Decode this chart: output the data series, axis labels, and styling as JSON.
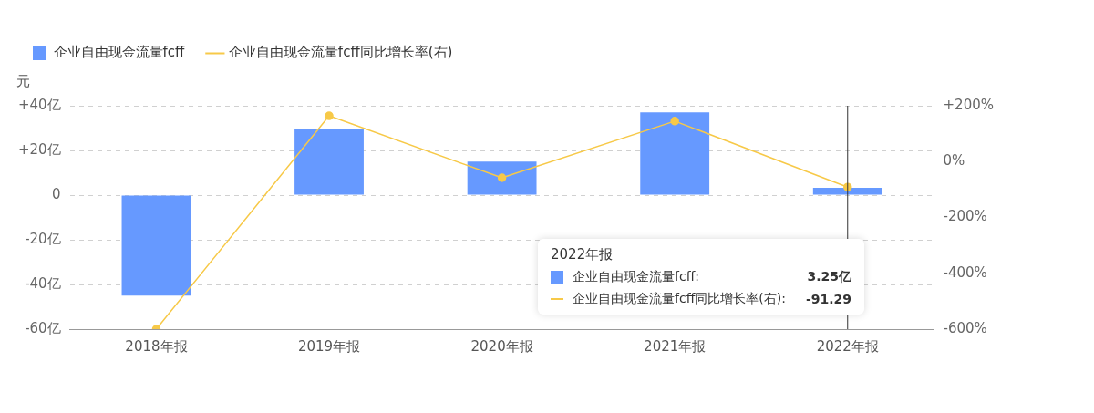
{
  "chart_data": {
    "type": "bar",
    "ylabel": "元",
    "categories": [
      "2018年报",
      "2019年报",
      "2020年报",
      "2021年报",
      "2022年报"
    ],
    "series": [
      {
        "name": "企业自由现金流量fcff",
        "color": "#6699ff",
        "values": [
          -45,
          29.5,
          15,
          37,
          3.25
        ]
      },
      {
        "name": "企业自由现金流量fcff同比增长率(右)",
        "type": "line",
        "axis": "y2",
        "color": "#f7c948",
        "values": [
          -600,
          164,
          -58,
          145,
          -91.29
        ]
      }
    ],
    "ylim": [
      -60,
      40
    ],
    "yticks": [
      {
        "value": -60,
        "label": "-60亿"
      },
      {
        "value": -40,
        "label": "-40亿"
      },
      {
        "value": -20,
        "label": "-20亿"
      },
      0,
      {
        "value": 20,
        "label": "+20亿"
      },
      {
        "value": 40,
        "label": "+40亿"
      }
    ],
    "y2lim": [
      -600,
      200
    ],
    "y2ticks": [
      {
        "value": -600,
        "label": "-600%"
      },
      {
        "value": -400,
        "label": "-400%"
      },
      {
        "value": -200,
        "label": "-200%"
      },
      {
        "value": 0,
        "label": "0%"
      },
      {
        "value": 200,
        "label": "+200%"
      }
    ],
    "ref_lines": [
      {
        "axis": "x",
        "value": "2022年报",
        "color": "#333333"
      }
    ],
    "annotations": [
      "2022年报",
      "企业自由现金流量fcff:",
      "3.25亿",
      "企业自由现金流量fcff同比增长率(右):",
      "-91.29"
    ],
    "grid": "y",
    "legend": "top left",
    "marker": "circle",
    "line_style": "solid"
  }
}
